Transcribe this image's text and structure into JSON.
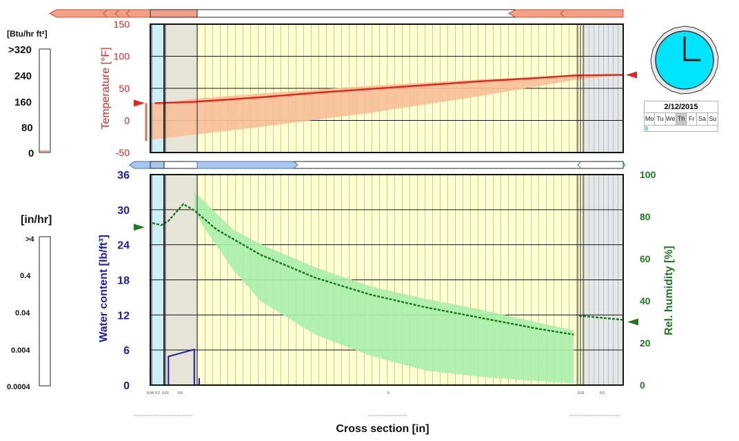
{
  "heat_flux_scale": {
    "unit": "[Btu/hr ft²]",
    "labels": [
      ">320",
      "240",
      "160",
      "80",
      "0"
    ]
  },
  "rain_scale": {
    "unit": "[in/hr]",
    "labels": [
      ">4",
      "0.4",
      "0.04",
      "0.004",
      "0.0004"
    ]
  },
  "clock": {
    "date": "2/12/2015",
    "hour": 3,
    "minute": 0
  },
  "calendar": {
    "days": [
      "Mo",
      "Tu",
      "We",
      "Th",
      "Fr",
      "Sa",
      "Su"
    ],
    "active_day": "Th",
    "progress": 0.04
  },
  "colors": {
    "temperature": "#e8241c",
    "temperature_band": "#f8bf98",
    "water": "#1a1ab4",
    "humidity": "#1f7a1f",
    "humidity_band": "#a8f0a8",
    "layer_fill": "#ffffd0",
    "membrane": "#cdeff8",
    "gray_layer": "#e6e4d8",
    "right_layer": "#e3e7e8"
  },
  "chart_data": [
    {
      "type": "line",
      "ylabel": "Temperature [°F]",
      "ylim": [
        -50,
        150
      ],
      "yticks": [
        "150",
        "100",
        "50",
        "0",
        "-50"
      ],
      "x_range": [
        0,
        8.6
      ],
      "series": [
        {
          "style": "line",
          "x": [
            0.08,
            0.33,
            0.8,
            2,
            3,
            4,
            5,
            6,
            7,
            7.7,
            8.6
          ],
          "values": [
            27,
            27.5,
            29,
            36,
            43,
            49,
            55,
            61,
            66,
            70,
            71
          ]
        },
        {
          "style": "band",
          "x": [
            0,
            0.33,
            0.8,
            2,
            4,
            6,
            7.7,
            8.6
          ],
          "upper": [
            27,
            29,
            34,
            42,
            54,
            64,
            70,
            71
          ],
          "lower": [
            -30,
            -27,
            -22,
            -10,
            12,
            38,
            63,
            71
          ]
        }
      ],
      "markers": {
        "left": 27,
        "right": 71
      }
    },
    {
      "type": "line",
      "ylabel": "Water content [lb/ft³]",
      "ylabel_right": "Rel. humidity [%]",
      "ylim": [
        0,
        36
      ],
      "ylim_right": [
        0,
        100
      ],
      "yticks": [
        "36",
        "30",
        "24",
        "18",
        "12",
        "6",
        "0"
      ],
      "yticks_right": [
        "100",
        "80",
        "60",
        "40",
        "20",
        "0"
      ],
      "x_range": [
        0,
        8.6
      ],
      "series": [
        {
          "style": "humidity_line",
          "axis": "right",
          "x": [
            0.04,
            0.2,
            0.33,
            0.6,
            0.8,
            1.2,
            2,
            3,
            4,
            5,
            6,
            7,
            7.7
          ],
          "values": [
            77,
            76,
            78,
            86,
            83,
            74,
            62,
            51,
            43,
            37,
            32,
            27,
            24
          ]
        },
        {
          "style": "humidity_line",
          "axis": "right",
          "x": [
            7.8,
            8.6
          ],
          "values": [
            33,
            31
          ]
        },
        {
          "style": "band",
          "axis": "right",
          "x": [
            0.8,
            0.95,
            1.5,
            2,
            3,
            4,
            5,
            6,
            7,
            7.7
          ],
          "upper": [
            92,
            88,
            74,
            67,
            56,
            47,
            41,
            36,
            30,
            26
          ],
          "lower": [
            83,
            76,
            55,
            40,
            24,
            14,
            7,
            4,
            2,
            1
          ]
        },
        {
          "style": "water_line",
          "axis": "left",
          "x": [
            0.33,
            0.33,
            0.8,
            0.8
          ],
          "values": [
            0,
            4.9,
            6.1,
            0
          ]
        }
      ],
      "markers": {
        "left_rh": 75,
        "right_rh": 30
      }
    }
  ],
  "xlabel": "Cross section [in]",
  "layer_ticks": [
    "0.04",
    "0.2",
    "0.01",
    "0.5",
    "6",
    "0.01",
    "0.5"
  ]
}
